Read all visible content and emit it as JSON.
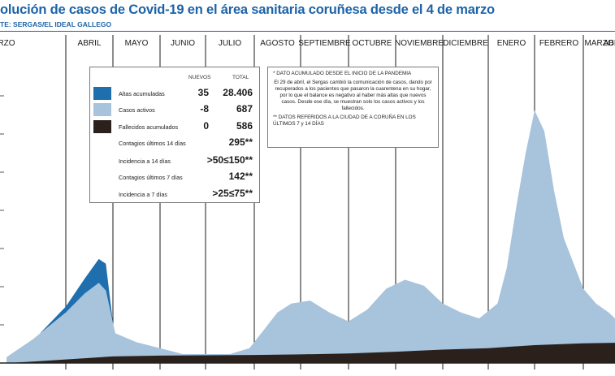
{
  "header": {
    "title": "olución de casos de Covid-19 en el área sanitaria coruñesa desde el 4 de marzo",
    "source": "TE: SERGAS/EL IDEAL GALLEGO"
  },
  "colors": {
    "active": "#a8c3dc",
    "recovered": "#1f6fae",
    "deaths": "#2a211c",
    "gridline": "#1a1a1a",
    "title": "#1d63a8"
  },
  "legend": {
    "col_new": "NUEVOS",
    "col_total": "TOTAL",
    "rows": [
      {
        "label": "Altas acumuladas",
        "nuevos": "35",
        "total": "28.406",
        "swatch": "recovered"
      },
      {
        "label": "Casos activos",
        "nuevos": "-8",
        "total": "687",
        "swatch": "active"
      },
      {
        "label": "Fallecidos acumulados",
        "nuevos": "0",
        "total": "586",
        "swatch": "deaths"
      }
    ],
    "extra": [
      {
        "label": "Contagios últimos 14 días",
        "value": "295**"
      },
      {
        "label": "Incidencia a 14 días",
        "value": ">50≤150**"
      },
      {
        "label": "Contagios últimos 7 días",
        "value": "142**"
      },
      {
        "label": "Incidencia a 7 días",
        "value": ">25≤75**"
      }
    ]
  },
  "notes": {
    "n1": "* DATO ACUMULADO DESDE EL INICIO DE LA PANDEMIA",
    "n2": "El 29 de abril, el Sergas cambió la comunicación de casos, dando por recuperados a los pacientes que pasaron la cuarentena en su hogar, por lo que el balance es negativo al haber más altas que nuevos casos. Desde ese día, se muestran solo los casos activos y los fallecidos.",
    "n3": "** DATOS REFERIDOS A LA CIUDAD DE A CORUÑA EN LOS ÚLTIMOS 7 y 14 DÍAS"
  },
  "chart_data": {
    "type": "area",
    "title": "olución de casos de Covid-19 en el área sanitaria coruñesa desde el 4 de marzo",
    "categories": [
      "RZO",
      "ABRIL",
      "MAYO",
      "JUNIO",
      "JULIO",
      "AGOSTO",
      "SEPTIEMBRE",
      "OCTUBRE",
      "NOVIEMBRE",
      "DICIEMBRE",
      "ENERO",
      "FEBRERO",
      "MARZO",
      "ABRIL"
    ],
    "x_unit": "month index (0 = march 2020)",
    "y_axis": "relative scale, no printed ticks",
    "grid": true,
    "series": [
      {
        "name": "Casos activos",
        "x": [
          0.1,
          0.5,
          1.0,
          1.5,
          1.8,
          2.05,
          2.5,
          3.0,
          3.5,
          4.0,
          4.5,
          4.9,
          5.2,
          5.5,
          5.8,
          6.2,
          6.6,
          7.0,
          7.4,
          7.8,
          8.2,
          8.6,
          9.0,
          9.4,
          9.8,
          10.2,
          10.4,
          10.6,
          10.8,
          11.0,
          11.2,
          11.4,
          11.6,
          12.0,
          12.4,
          12.8,
          13.2,
          13.6,
          13.96
        ],
        "y": [
          2,
          8,
          17,
          25,
          28,
          10,
          7,
          5,
          3,
          3,
          3,
          5,
          11,
          17,
          20,
          21,
          17,
          14,
          18,
          25,
          28,
          26,
          20,
          17,
          15,
          20,
          32,
          52,
          70,
          85,
          78,
          58,
          42,
          25,
          20,
          17,
          13,
          16,
          18
        ]
      },
      {
        "name": "Altas acumuladas",
        "x": [
          0.6,
          1.0,
          1.4,
          1.7,
          1.85,
          2.0
        ],
        "y": [
          0,
          2,
          5,
          8,
          9,
          0
        ]
      },
      {
        "name": "Fallecidos acumulados",
        "x": [
          0.1,
          0.5,
          1.0,
          2.0,
          3.0,
          4.0,
          5.0,
          6.0,
          7.0,
          8.0,
          9.0,
          10.0,
          11.0,
          12.0,
          13.0,
          13.96
        ],
        "y": [
          0,
          0.5,
          1.2,
          2.2,
          2.5,
          2.6,
          2.7,
          2.9,
          3.2,
          3.8,
          4.5,
          5.0,
          6.0,
          6.6,
          6.8,
          6.9
        ]
      }
    ]
  }
}
